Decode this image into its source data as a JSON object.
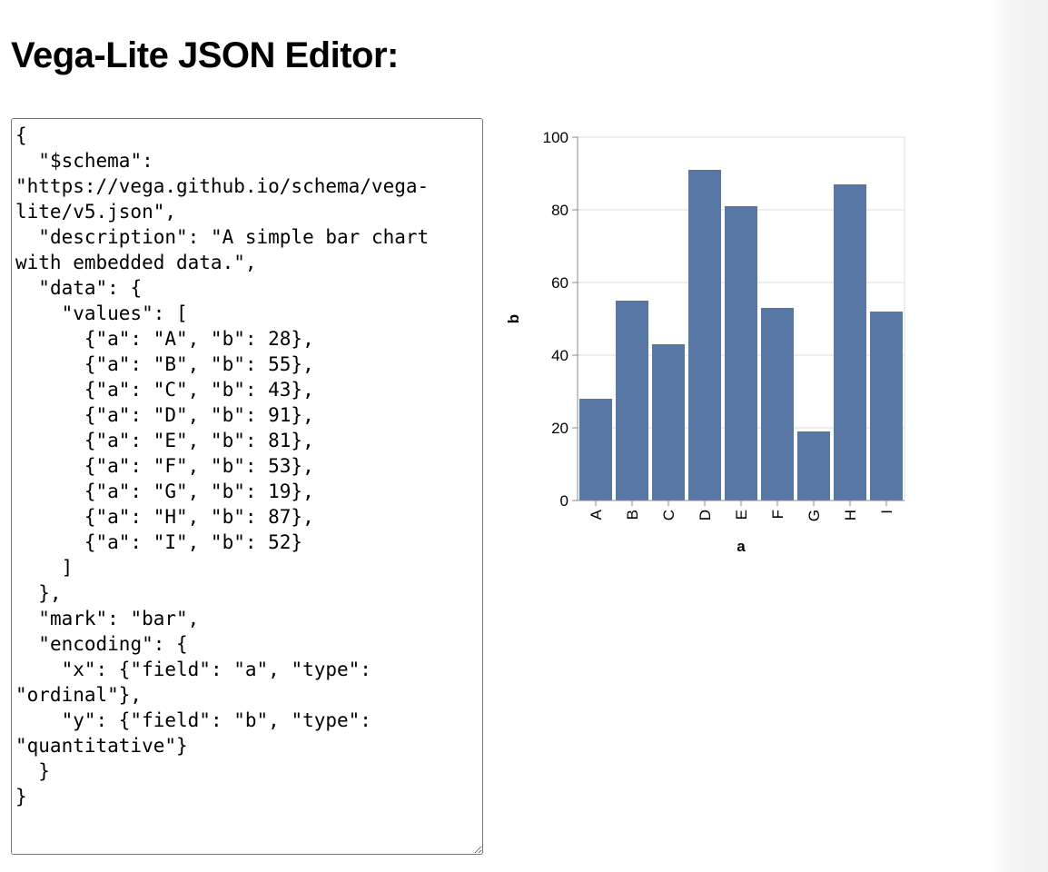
{
  "page": {
    "title": "Vega-Lite JSON Editor:"
  },
  "editor": {
    "value": "{\n  \"$schema\": \"https://vega.github.io/schema/vega-lite/v5.json\",\n  \"description\": \"A simple bar chart with embedded data.\",\n  \"data\": {\n    \"values\": [\n      {\"a\": \"A\", \"b\": 28},\n      {\"a\": \"B\", \"b\": 55},\n      {\"a\": \"C\", \"b\": 43},\n      {\"a\": \"D\", \"b\": 91},\n      {\"a\": \"E\", \"b\": 81},\n      {\"a\": \"F\", \"b\": 53},\n      {\"a\": \"G\", \"b\": 19},\n      {\"a\": \"H\", \"b\": 87},\n      {\"a\": \"I\", \"b\": 52}\n    ]\n  },\n  \"mark\": \"bar\",\n  \"encoding\": {\n    \"x\": {\"field\": \"a\", \"type\": \"ordinal\"},\n    \"y\": {\"field\": \"b\", \"type\": \"quantitative\"}\n  }\n}"
  },
  "chart_data": {
    "type": "bar",
    "categories": [
      "A",
      "B",
      "C",
      "D",
      "E",
      "F",
      "G",
      "H",
      "I"
    ],
    "values": [
      28,
      55,
      43,
      91,
      81,
      53,
      19,
      87,
      52
    ],
    "xlabel": "a",
    "ylabel": "b",
    "ylim": [
      0,
      100
    ],
    "yticks": [
      "0",
      "20",
      "40",
      "60",
      "80",
      "100"
    ],
    "grid": true,
    "bar_color": "#5778a4",
    "grid_color": "#dddddd",
    "axis_color": "#888888"
  }
}
